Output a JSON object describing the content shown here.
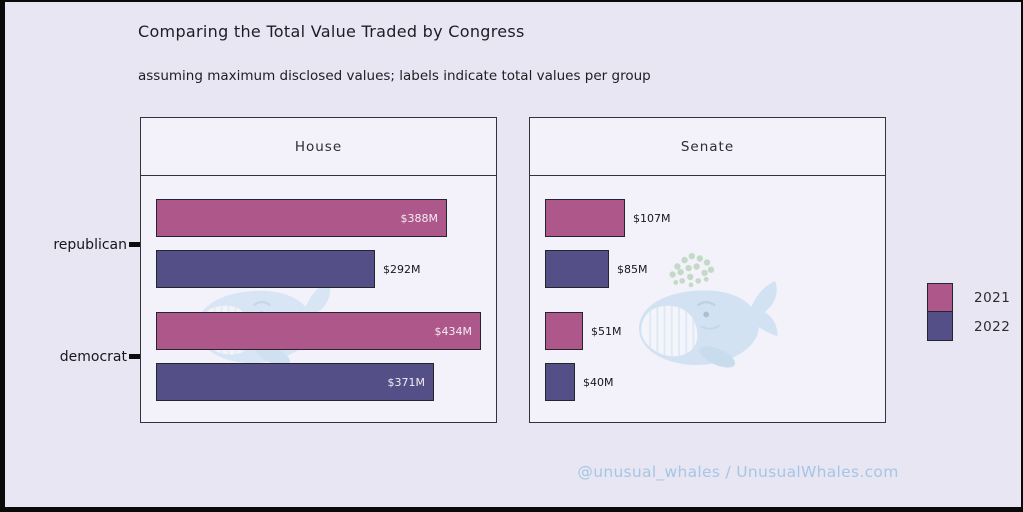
{
  "title": "Comparing the Total Value Traded by Congress",
  "subtitle": "assuming maximum disclosed values; labels indicate total values per group",
  "footer": "@unusual_whales / UnusualWhales.com",
  "y_axis": {
    "labels": [
      "republican",
      "democrat"
    ]
  },
  "legend": {
    "entries": [
      {
        "label": "2021",
        "color": "#ad578b"
      },
      {
        "label": "2022",
        "color": "#545087"
      }
    ]
  },
  "colors": {
    "series_2021": "#ad578b",
    "series_2022": "#545087",
    "background": "#e7e6f2",
    "panel_background": "#f3f2fa",
    "panel_border": "#33333d",
    "footer_text": "#a5c6e6",
    "frame": "#0a0a0a"
  },
  "watermark": {
    "icon": "whale-icon",
    "body_color": "#b5d5ec",
    "belly_color": "#f4f8fc",
    "spray_color": "#9cc39c"
  },
  "chart_data": {
    "type": "bar",
    "orientation": "horizontal",
    "title": "Comparing the Total Value Traded by Congress",
    "subtitle": "assuming maximum disclosed values; labels indicate total values per group",
    "unit": "USD millions",
    "categories": [
      "republican",
      "democrat"
    ],
    "series_names": [
      "2021",
      "2022"
    ],
    "series_colors": {
      "2021": "#ad578b",
      "2022": "#545087"
    },
    "xlim": [
      0,
      434
    ],
    "grid": false,
    "legend_position": "right",
    "facets": [
      {
        "name": "House",
        "bars": [
          {
            "group": "republican",
            "series": "2021",
            "value": 388,
            "label": "$388M",
            "label_inside": true
          },
          {
            "group": "republican",
            "series": "2022",
            "value": 292,
            "label": "$292M",
            "label_inside": false
          },
          {
            "group": "democrat",
            "series": "2021",
            "value": 434,
            "label": "$434M",
            "label_inside": true
          },
          {
            "group": "democrat",
            "series": "2022",
            "value": 371,
            "label": "$371M",
            "label_inside": true
          }
        ]
      },
      {
        "name": "Senate",
        "bars": [
          {
            "group": "republican",
            "series": "2021",
            "value": 107,
            "label": "$107M",
            "label_inside": false
          },
          {
            "group": "republican",
            "series": "2022",
            "value": 85,
            "label": "$85M",
            "label_inside": false
          },
          {
            "group": "democrat",
            "series": "2021",
            "value": 51,
            "label": "$51M",
            "label_inside": false
          },
          {
            "group": "democrat",
            "series": "2022",
            "value": 40,
            "label": "$40M",
            "label_inside": false
          }
        ]
      }
    ]
  }
}
